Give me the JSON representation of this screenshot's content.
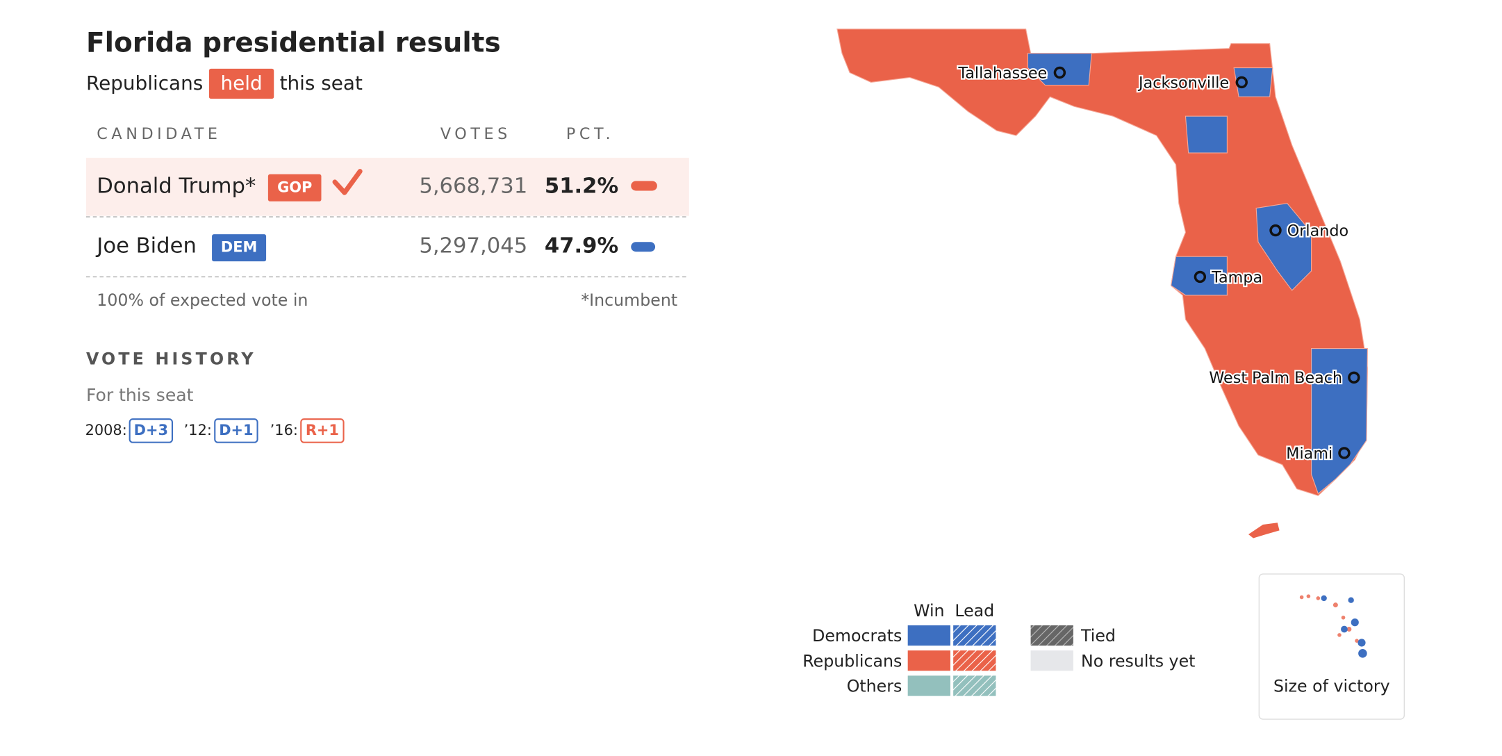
{
  "header": {
    "title": "Florida presidential results",
    "subtitle_before": "Republicans",
    "badge": "held",
    "subtitle_after": "this seat"
  },
  "table": {
    "columns": [
      "CANDIDATE",
      "VOTES",
      "PCT."
    ],
    "rows": [
      {
        "name": "Donald Trump*",
        "party": "GOP",
        "votes": "5,668,731",
        "pct": "51.2%"
      },
      {
        "name": "Joe Biden",
        "party": "DEM",
        "votes": "5,297,045",
        "pct": "47.9%"
      }
    ],
    "footer_left": "100% of expected vote in",
    "footer_right": "*Incumbent"
  },
  "history": {
    "title": "VOTE HISTORY",
    "subtitle": "For this seat",
    "items": [
      {
        "year": "2008:",
        "margin": "D+3"
      },
      {
        "year": "’12:",
        "margin": "D+1"
      },
      {
        "year": "’16:",
        "margin": "R+1"
      }
    ]
  },
  "map": {
    "cities": [
      "Tallahassee",
      "Jacksonville",
      "Orlando",
      "Tampa",
      "West Palm Beach",
      "Miami"
    ]
  },
  "legend": {
    "columns": [
      "Win",
      "Lead"
    ],
    "rows": [
      "Democrats",
      "Republicans",
      "Others"
    ],
    "extra": [
      "Tied",
      "No results yet"
    ],
    "toggle": "Size of victory"
  }
}
